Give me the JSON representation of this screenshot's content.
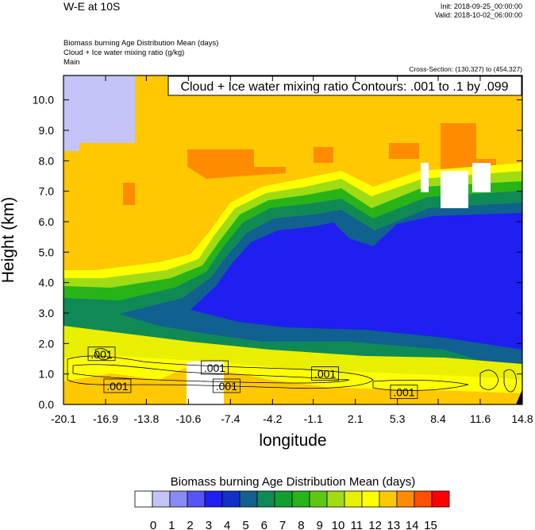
{
  "header": {
    "title": "W-E at 10S",
    "init": "Init: 2018-09-25_00:00:00",
    "valid": "Valid: 2018-10-02_06:00:00",
    "field1": "Biomass burning Age Distribution Mean    (days)",
    "field2": "Cloud + Ice water mixing ratio    (g/kg)",
    "field3": "Main",
    "cross_section": "Cross-Section: (130,327) to (454,327)"
  },
  "chart_data": {
    "type": "heatmap",
    "title": "Cloud + Ice water mixing ratio Contours: .001 to .1 by .099",
    "xlabel": "longitude",
    "ylabel": "Height (km)",
    "xlim": [
      -20.1,
      14.8
    ],
    "ylim": [
      0,
      10.8
    ],
    "x_ticks": [
      "-20.1",
      "-16.9",
      "-13.8",
      "-10.6",
      "-7.4",
      "-4.2",
      "-1.1",
      "2.1",
      "5.3",
      "8.4",
      "11.6",
      "14.8"
    ],
    "y_ticks": [
      "0.0",
      "1.0",
      "2.0",
      "3.0",
      "4.0",
      "5.0",
      "6.0",
      "7.0",
      "8.0",
      "9.0",
      "10.0"
    ],
    "contour_labels": [
      ".001",
      ".001",
      ".001",
      ".001",
      ".001",
      ".001"
    ],
    "colorbar": {
      "title": "Biomass burning Age Distribution Mean  (days)",
      "labels": [
        "0",
        "1",
        "2",
        "3",
        "4",
        "5",
        "6",
        "7",
        "8",
        "9",
        "10",
        "11",
        "12",
        "13",
        "14",
        "15"
      ],
      "colors": [
        "#ffffff",
        "#c4c4f8",
        "#8a8af6",
        "#5555f3",
        "#1f1ff0",
        "#1030c8",
        "#106090",
        "#108a55",
        "#10a030",
        "#28b418",
        "#5cc814",
        "#a0dc14",
        "#e8f000",
        "#ffff00",
        "#ffc800",
        "#ff8c00",
        "#ff5000",
        "#ff0000"
      ]
    }
  }
}
